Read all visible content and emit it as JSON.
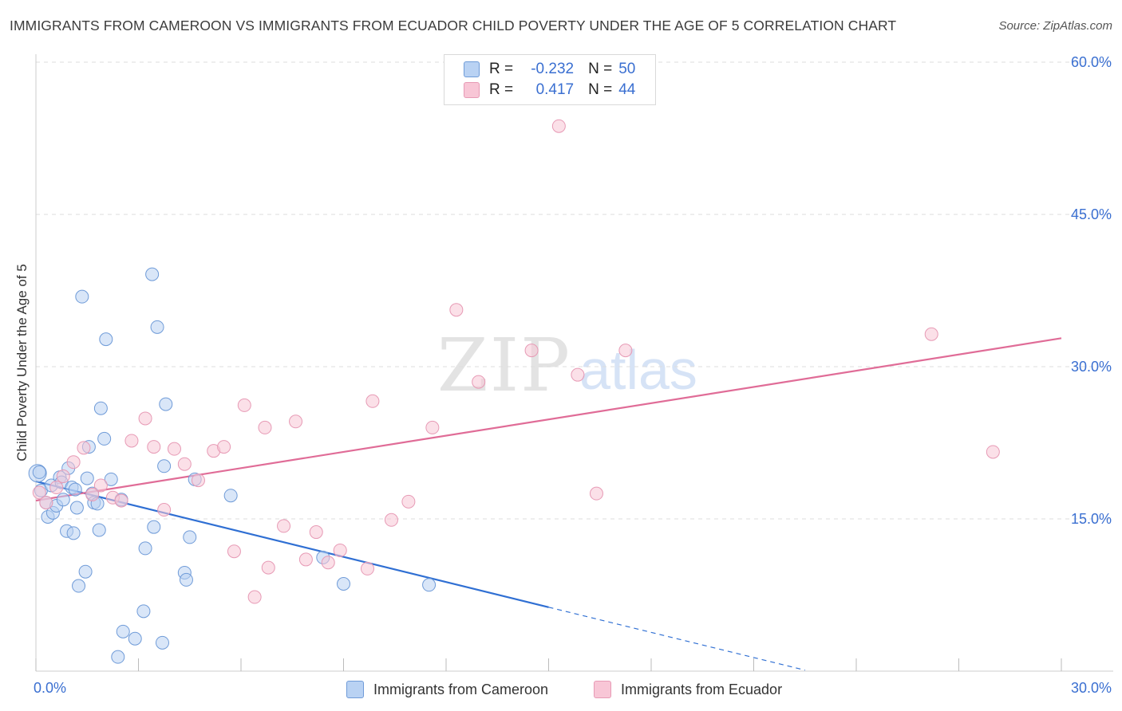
{
  "title": "IMMIGRANTS FROM CAMEROON VS IMMIGRANTS FROM ECUADOR CHILD POVERTY UNDER THE AGE OF 5 CORRELATION CHART",
  "source": "Source: ZipAtlas.com",
  "watermark": {
    "zip": "ZIP",
    "atlas": "atlas"
  },
  "legend": {
    "rows": [
      {
        "r_label": "R =",
        "r_value": "-0.232",
        "n_label": "N =",
        "n_value": "50"
      },
      {
        "r_label": "R =",
        "r_value": "0.417",
        "n_label": "N =",
        "n_value": "44"
      }
    ]
  },
  "bottom_legend": {
    "cameroon": "Immigrants from Cameroon",
    "ecuador": "Immigrants from Ecuador"
  },
  "colors": {
    "cameroon_fill": "#b9d2f3",
    "cameroon_stroke": "#6f9bd8",
    "cameroon_line": "#2f6fd3",
    "ecuador_fill": "#f8c6d6",
    "ecuador_stroke": "#e79ab5",
    "ecuador_line": "#e06c97",
    "grid": "#dddddd",
    "tick_text": "#3a6fd1"
  },
  "chart_data": {
    "type": "scatter",
    "title": "IMMIGRANTS FROM CAMEROON VS IMMIGRANTS FROM ECUADOR CHILD POVERTY UNDER THE AGE OF 5 CORRELATION CHART",
    "xlabel": "",
    "ylabel": "Child Poverty Under the Age of 5",
    "xlim": [
      0,
      30
    ],
    "ylim": [
      0,
      60
    ],
    "x_tick_labels": [
      {
        "value": 0,
        "label": "0.0%"
      },
      {
        "value": 30,
        "label": "30.0%"
      }
    ],
    "y_tick_labels": [
      {
        "value": 15,
        "label": "15.0%"
      },
      {
        "value": 30,
        "label": "30.0%"
      },
      {
        "value": 45,
        "label": "45.0%"
      },
      {
        "value": 60,
        "label": "60.0%"
      }
    ],
    "series": [
      {
        "name": "Immigrants from Cameroon",
        "R": -0.232,
        "N": 50,
        "points": [
          [
            0.05,
            19.5
          ],
          [
            0.15,
            17.8
          ],
          [
            0.3,
            16.6
          ],
          [
            0.35,
            15.2
          ],
          [
            0.45,
            18.3
          ],
          [
            0.5,
            15.6
          ],
          [
            0.6,
            16.3
          ],
          [
            0.7,
            19.1
          ],
          [
            0.75,
            18.6
          ],
          [
            0.8,
            16.9
          ],
          [
            0.9,
            13.8
          ],
          [
            0.95,
            20.0
          ],
          [
            1.05,
            18.1
          ],
          [
            1.1,
            13.6
          ],
          [
            1.15,
            17.9
          ],
          [
            1.2,
            16.1
          ],
          [
            1.25,
            8.4
          ],
          [
            1.35,
            36.9
          ],
          [
            1.45,
            9.8
          ],
          [
            1.5,
            19.0
          ],
          [
            1.55,
            22.1
          ],
          [
            1.65,
            17.5
          ],
          [
            1.7,
            16.6
          ],
          [
            1.8,
            16.5
          ],
          [
            1.85,
            13.9
          ],
          [
            1.9,
            25.9
          ],
          [
            2.0,
            22.9
          ],
          [
            2.05,
            32.7
          ],
          [
            2.2,
            18.9
          ],
          [
            2.4,
            1.4
          ],
          [
            2.5,
            16.9
          ],
          [
            2.55,
            3.9
          ],
          [
            2.9,
            3.2
          ],
          [
            3.15,
            5.9
          ],
          [
            3.2,
            12.1
          ],
          [
            3.4,
            39.1
          ],
          [
            3.45,
            14.2
          ],
          [
            3.55,
            33.9
          ],
          [
            3.7,
            2.8
          ],
          [
            3.75,
            20.2
          ],
          [
            3.8,
            26.3
          ],
          [
            4.35,
            9.7
          ],
          [
            4.4,
            9.0
          ],
          [
            4.5,
            13.2
          ],
          [
            4.65,
            18.9
          ],
          [
            5.7,
            17.3
          ],
          [
            8.4,
            11.2
          ],
          [
            9.0,
            8.6
          ],
          [
            11.5,
            8.5
          ],
          [
            0.1,
            19.6
          ]
        ],
        "trend": {
          "x0": 0,
          "y0": 18.7,
          "x1": 15.0,
          "y1": 6.3,
          "dash_x1": 22.5,
          "dash_y1": 0.1
        }
      },
      {
        "name": "Immigrants from Ecuador",
        "R": 0.417,
        "N": 44,
        "points": [
          [
            0.1,
            17.6
          ],
          [
            0.3,
            16.6
          ],
          [
            0.6,
            18.1
          ],
          [
            0.8,
            19.2
          ],
          [
            1.1,
            20.6
          ],
          [
            1.4,
            22.0
          ],
          [
            1.65,
            17.4
          ],
          [
            1.9,
            18.3
          ],
          [
            2.25,
            17.1
          ],
          [
            2.5,
            16.8
          ],
          [
            2.8,
            22.7
          ],
          [
            3.2,
            24.9
          ],
          [
            3.45,
            22.1
          ],
          [
            3.75,
            15.9
          ],
          [
            4.05,
            21.9
          ],
          [
            4.35,
            20.4
          ],
          [
            4.75,
            18.8
          ],
          [
            5.2,
            21.7
          ],
          [
            5.5,
            22.1
          ],
          [
            5.8,
            11.8
          ],
          [
            6.1,
            26.2
          ],
          [
            6.4,
            7.3
          ],
          [
            6.8,
            10.2
          ],
          [
            6.7,
            24.0
          ],
          [
            7.25,
            14.3
          ],
          [
            7.6,
            24.6
          ],
          [
            7.9,
            11.0
          ],
          [
            8.2,
            13.7
          ],
          [
            8.55,
            10.7
          ],
          [
            8.9,
            11.9
          ],
          [
            9.7,
            10.1
          ],
          [
            9.85,
            26.6
          ],
          [
            10.4,
            14.9
          ],
          [
            10.9,
            16.7
          ],
          [
            11.6,
            24.0
          ],
          [
            12.3,
            35.6
          ],
          [
            12.95,
            28.5
          ],
          [
            14.5,
            31.6
          ],
          [
            15.3,
            53.7
          ],
          [
            15.85,
            29.2
          ],
          [
            16.4,
            17.5
          ],
          [
            17.25,
            31.6
          ],
          [
            26.2,
            33.2
          ],
          [
            28.0,
            21.6
          ]
        ],
        "trend": {
          "x0": 0,
          "y0": 16.8,
          "x1": 30.0,
          "y1": 32.8
        }
      }
    ]
  }
}
